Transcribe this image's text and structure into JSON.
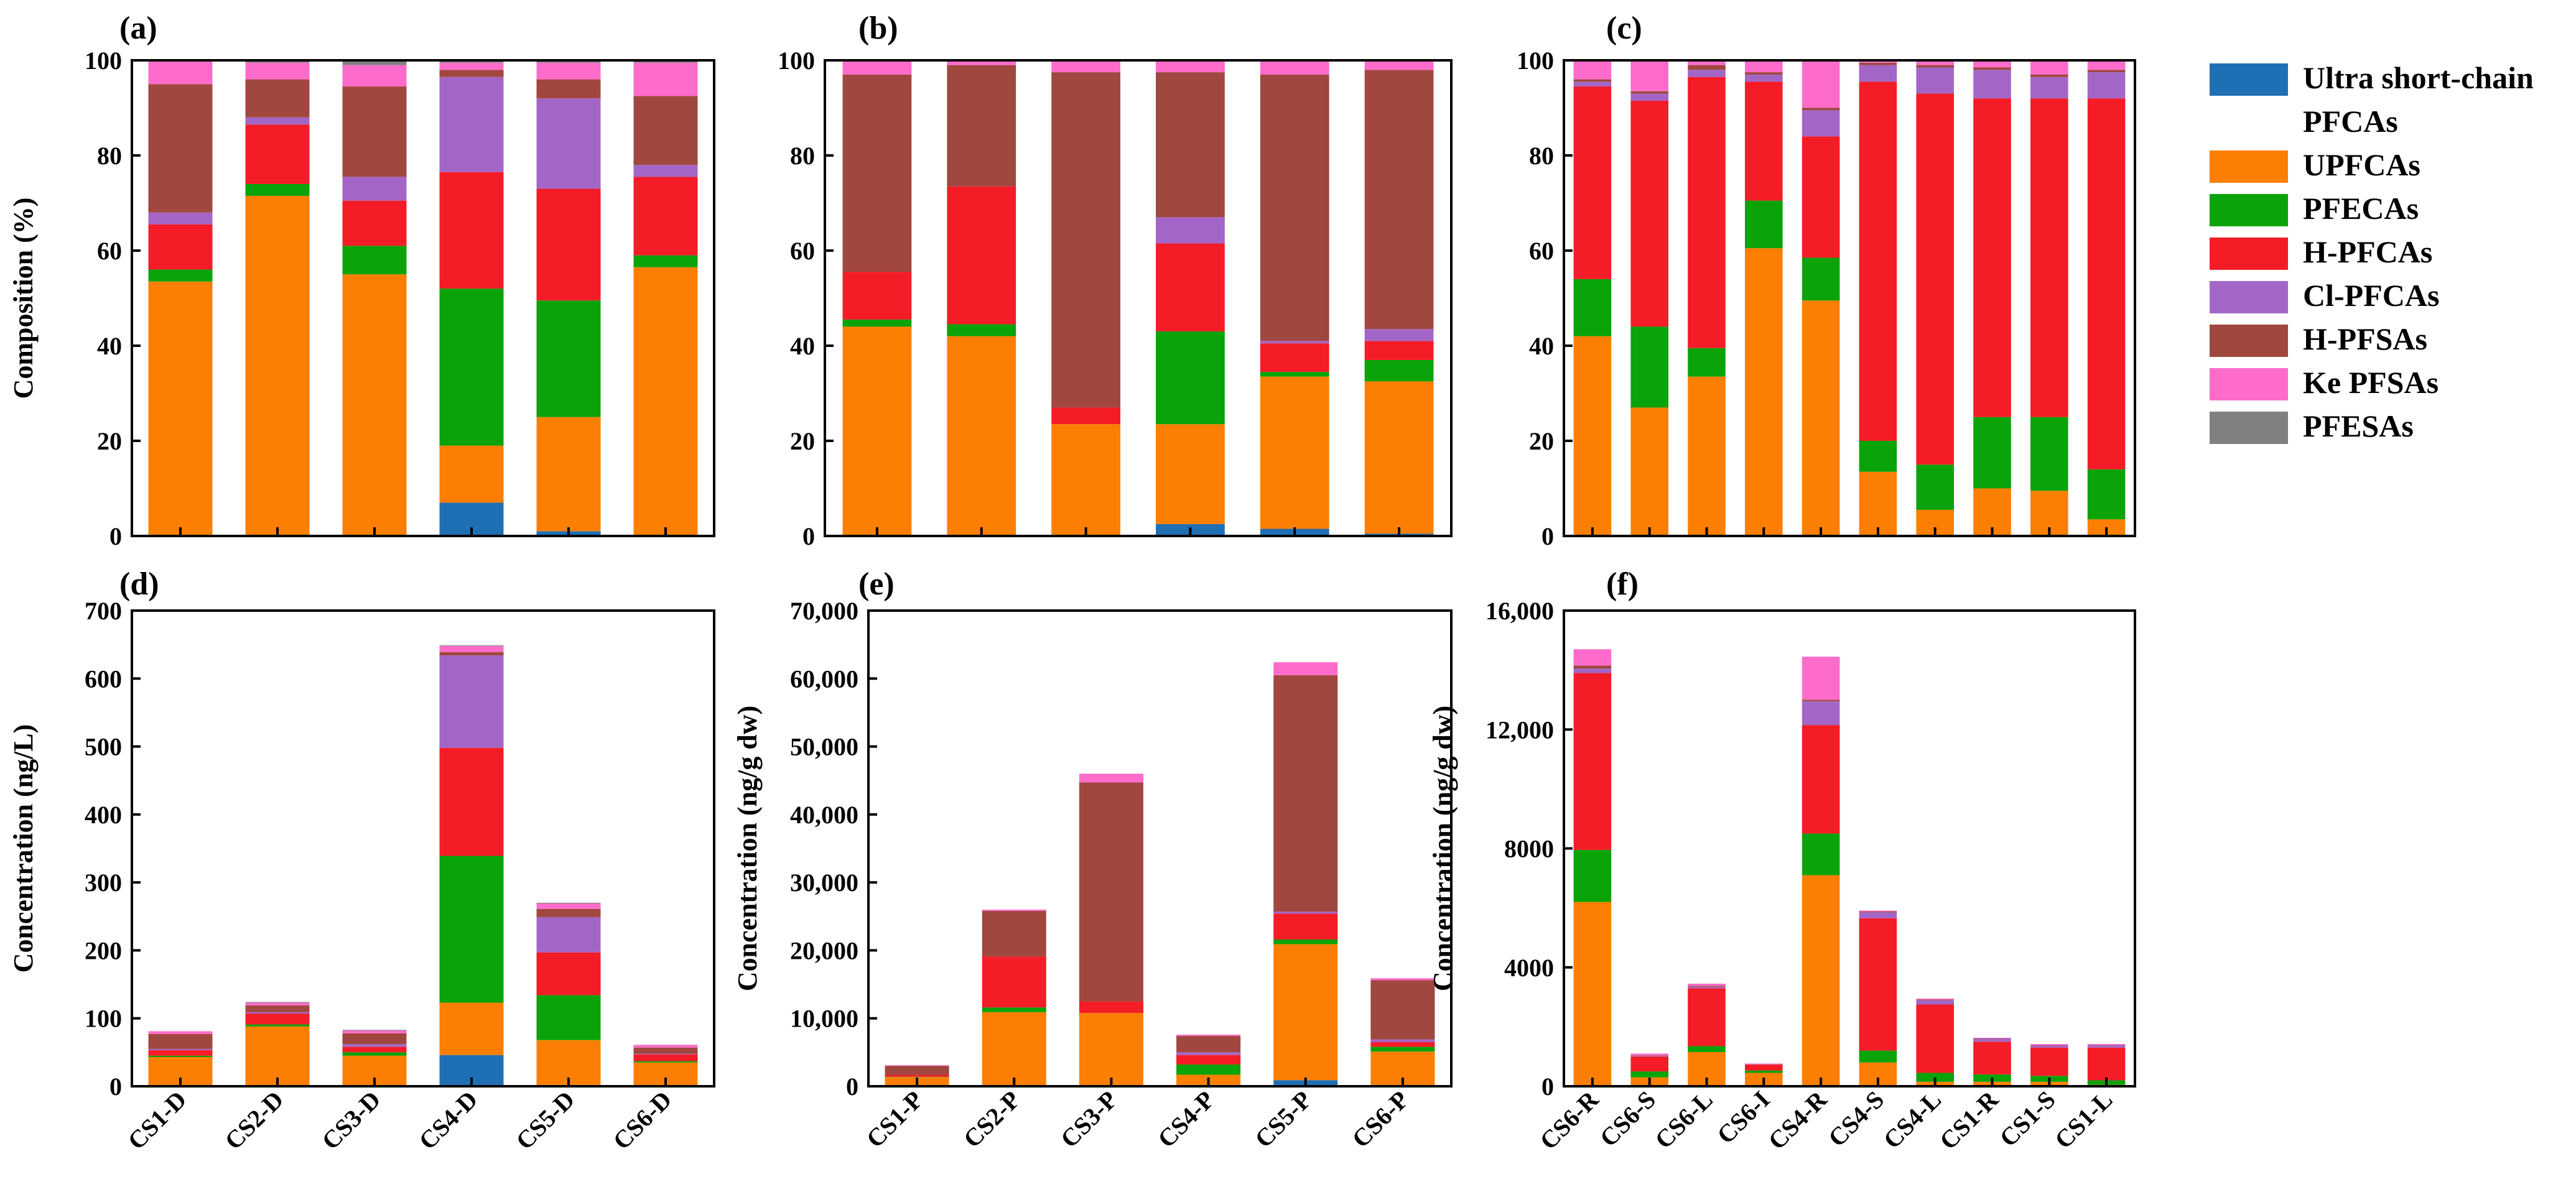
{
  "colors": {
    "Ultra short-chain PFCAs": "#1f6fb4",
    "UPFCAs": "#fc7f03",
    "PFECAs": "#0aa30a",
    "H-PFCAs": "#f41c26",
    "Cl-PFCAs": "#a366c6",
    "H-PFSAs": "#a0473f",
    "Ke PFSAs": "#fd6ccb",
    "PFESAs": "#808080"
  },
  "legend": {
    "entries": [
      {
        "name": "Ultra short-chain PFCAs",
        "lines": [
          "Ultra short-chain",
          "PFCAs"
        ]
      },
      {
        "name": "UPFCAs",
        "lines": [
          "UPFCAs"
        ]
      },
      {
        "name": "PFECAs",
        "lines": [
          "PFECAs"
        ]
      },
      {
        "name": "H-PFCAs",
        "lines": [
          "H-PFCAs"
        ]
      },
      {
        "name": "Cl-PFCAs",
        "lines": [
          "Cl-PFCAs"
        ]
      },
      {
        "name": "H-PFSAs",
        "lines": [
          "H-PFSAs"
        ]
      },
      {
        "name": "Ke PFSAs",
        "lines": [
          "Ke PFSAs"
        ]
      },
      {
        "name": "PFESAs",
        "lines": [
          "PFESAs"
        ]
      }
    ]
  },
  "chart_data": [
    {
      "panel": "(a)",
      "type": "bar",
      "stacked": true,
      "ylabel": "Composition (%)",
      "ylim": [
        0,
        100
      ],
      "yticks": [
        "0",
        "20",
        "40",
        "60",
        "80",
        "100"
      ],
      "show_categories": false,
      "categories": [
        "CS1-D",
        "CS2-D",
        "CS3-D",
        "CS4-D",
        "CS5-D",
        "CS6-D"
      ],
      "series": [
        {
          "name": "Ultra short-chain PFCAs",
          "values": [
            0,
            0,
            0,
            7,
            1,
            0
          ]
        },
        {
          "name": "UPFCAs",
          "values": [
            53.5,
            71.5,
            55,
            12,
            24,
            56.5
          ]
        },
        {
          "name": "PFECAs",
          "values": [
            2.5,
            2.5,
            6,
            33,
            24.5,
            2.5
          ]
        },
        {
          "name": "H-PFCAs",
          "values": [
            9.5,
            12.5,
            9.5,
            24.5,
            23.5,
            16.5
          ]
        },
        {
          "name": "Cl-PFCAs",
          "values": [
            2.5,
            1.5,
            5,
            20,
            19,
            2.5
          ]
        },
        {
          "name": "H-PFSAs",
          "values": [
            27,
            8,
            19,
            1.5,
            4,
            14.5
          ]
        },
        {
          "name": "Ke PFSAs",
          "values": [
            5,
            3.5,
            4.5,
            1.5,
            3.5,
            7
          ]
        },
        {
          "name": "PFESAs",
          "values": [
            0,
            0.5,
            1,
            0.5,
            0.5,
            0.5
          ]
        }
      ]
    },
    {
      "panel": "(b)",
      "type": "bar",
      "stacked": true,
      "ylabel": "",
      "ylim": [
        0,
        100
      ],
      "yticks": [
        "0",
        "20",
        "40",
        "60",
        "80",
        "100"
      ],
      "show_categories": false,
      "categories": [
        "CS1-P",
        "CS2-P",
        "CS3-P",
        "CS4-P",
        "CS5-P",
        "CS6-P"
      ],
      "series": [
        {
          "name": "Ultra short-chain PFCAs",
          "values": [
            0,
            0,
            0,
            2.5,
            1.5,
            0.5
          ]
        },
        {
          "name": "UPFCAs",
          "values": [
            44,
            42,
            23.5,
            21,
            32,
            32
          ]
        },
        {
          "name": "PFECAs",
          "values": [
            1.5,
            2.5,
            0,
            19.5,
            1,
            4.5
          ]
        },
        {
          "name": "H-PFCAs",
          "values": [
            10,
            29,
            3.5,
            18.5,
            6,
            4
          ]
        },
        {
          "name": "Cl-PFCAs",
          "values": [
            0,
            0,
            0,
            5.5,
            0.5,
            2.5
          ]
        },
        {
          "name": "H-PFSAs",
          "values": [
            41.5,
            25.5,
            70.5,
            30.5,
            56,
            54.5
          ]
        },
        {
          "name": "Ke PFSAs",
          "values": [
            3,
            1,
            2.5,
            2.5,
            3,
            2
          ]
        },
        {
          "name": "PFESAs",
          "values": [
            0,
            0,
            0,
            0,
            0,
            0
          ]
        }
      ]
    },
    {
      "panel": "(c)",
      "type": "bar",
      "stacked": true,
      "ylabel": "",
      "ylim": [
        0,
        100
      ],
      "yticks": [
        "0",
        "20",
        "40",
        "60",
        "80",
        "100"
      ],
      "show_categories": false,
      "categories": [
        "CS6-R",
        "CS6-S",
        "CS6-L",
        "CS6-I",
        "CS4-R",
        "CS4-S",
        "CS4-L",
        "CS1-R",
        "CS1-S",
        "CS1-L"
      ],
      "series": [
        {
          "name": "Ultra short-chain PFCAs",
          "values": [
            0,
            0,
            0,
            0,
            0,
            0,
            0,
            0,
            0,
            0
          ]
        },
        {
          "name": "UPFCAs",
          "values": [
            42,
            27,
            33.5,
            60.5,
            49.5,
            13.5,
            5.5,
            10,
            9.5,
            3.5
          ]
        },
        {
          "name": "PFECAs",
          "values": [
            12,
            17,
            6,
            10,
            9,
            6.5,
            9.5,
            15,
            15.5,
            10.5
          ]
        },
        {
          "name": "H-PFCAs",
          "values": [
            40.5,
            47.5,
            57,
            25,
            25.5,
            75.5,
            78,
            67,
            67,
            78
          ]
        },
        {
          "name": "Cl-PFCAs",
          "values": [
            1,
            1.5,
            1.5,
            1.5,
            5.5,
            3.5,
            5.5,
            6,
            4.5,
            5.5
          ]
        },
        {
          "name": "H-PFSAs",
          "values": [
            0.5,
            0.5,
            1,
            0.5,
            0.5,
            0.5,
            0.5,
            0.5,
            0.5,
            0.5
          ]
        },
        {
          "name": "Ke PFSAs",
          "values": [
            4,
            6.5,
            1,
            2.5,
            10,
            0.5,
            1,
            1.5,
            3,
            2
          ]
        },
        {
          "name": "PFESAs",
          "values": [
            0,
            0,
            0,
            0,
            0,
            0,
            0,
            0,
            0,
            0
          ]
        }
      ]
    },
    {
      "panel": "(d)",
      "type": "bar",
      "stacked": true,
      "ylabel": "Concentration (ng/L)",
      "ylim": [
        0,
        700
      ],
      "yticks": [
        "0",
        "100",
        "200",
        "300",
        "400",
        "500",
        "600",
        "700"
      ],
      "show_categories": true,
      "categories": [
        "CS1-D",
        "CS2-D",
        "CS3-D",
        "CS4-D",
        "CS5-D",
        "CS6-D"
      ],
      "series": [
        {
          "name": "Ultra short-chain PFCAs",
          "values": [
            0,
            0,
            0,
            46,
            2,
            0
          ]
        },
        {
          "name": "UPFCAs",
          "values": [
            43,
            88,
            45,
            77,
            66,
            35
          ]
        },
        {
          "name": "PFECAs",
          "values": [
            2,
            3,
            5,
            216,
            66,
            2
          ]
        },
        {
          "name": "H-PFCAs",
          "values": [
            8,
            16,
            8,
            159,
            63,
            10
          ]
        },
        {
          "name": "Cl-PFCAs",
          "values": [
            2,
            2,
            4,
            136,
            52,
            1
          ]
        },
        {
          "name": "H-PFSAs",
          "values": [
            22,
            10,
            16,
            5,
            12,
            9
          ]
        },
        {
          "name": "Ke PFSAs",
          "values": [
            4,
            4,
            4,
            9,
            8,
            4
          ]
        },
        {
          "name": "PFESAs",
          "values": [
            0,
            1,
            1,
            1,
            1,
            0
          ]
        }
      ]
    },
    {
      "panel": "(e)",
      "type": "bar",
      "stacked": true,
      "ylabel": "Concentration (ng/g dw)",
      "ylim": [
        0,
        70000
      ],
      "yticks": [
        "0",
        "10,000",
        "20,000",
        "30,000",
        "40,000",
        "50,000",
        "60,000",
        "70,000"
      ],
      "show_categories": true,
      "categories": [
        "CS1-P",
        "CS2-P",
        "CS3-P",
        "CS4-P",
        "CS5-P",
        "CS6-P"
      ],
      "series": [
        {
          "name": "Ultra short-chain PFCAs",
          "values": [
            0,
            0,
            0,
            200,
            900,
            100
          ]
        },
        {
          "name": "UPFCAs",
          "values": [
            1350,
            10900,
            10800,
            1500,
            20000,
            5000
          ]
        },
        {
          "name": "PFECAs",
          "values": [
            50,
            700,
            0,
            1500,
            700,
            700
          ]
        },
        {
          "name": "H-PFCAs",
          "values": [
            300,
            7500,
            1700,
            1400,
            3800,
            700
          ]
        },
        {
          "name": "Cl-PFCAs",
          "values": [
            0,
            0,
            0,
            400,
            300,
            400
          ]
        },
        {
          "name": "H-PFSAs",
          "values": [
            1300,
            6700,
            32200,
            2400,
            34800,
            8700
          ]
        },
        {
          "name": "Ke PFSAs",
          "values": [
            100,
            200,
            1300,
            200,
            1900,
            300
          ]
        },
        {
          "name": "PFESAs",
          "values": [
            0,
            0,
            0,
            0,
            0,
            0
          ]
        }
      ]
    },
    {
      "panel": "(f)",
      "type": "bar",
      "stacked": true,
      "ylabel": "Concentration (ng/g dw)",
      "ylim": [
        0,
        16000
      ],
      "yticks": [
        "0",
        "4000",
        "8000",
        "12,000",
        "16,000"
      ],
      "show_categories": true,
      "categories": [
        "CS6-R",
        "CS6-S",
        "CS6-L",
        "CS6-I",
        "CS4-R",
        "CS4-S",
        "CS4-L",
        "CS1-R",
        "CS1-S",
        "CS1-L"
      ],
      "series": [
        {
          "name": "Ultra short-chain PFCAs",
          "values": [
            0,
            0,
            0,
            0,
            0,
            0,
            0,
            0,
            0,
            0
          ]
        },
        {
          "name": "UPFCAs",
          "values": [
            6200,
            300,
            1150,
            450,
            7100,
            800,
            150,
            150,
            150,
            50
          ]
        },
        {
          "name": "PFECAs",
          "values": [
            1750,
            200,
            200,
            80,
            1400,
            400,
            300,
            250,
            200,
            150
          ]
        },
        {
          "name": "H-PFCAs",
          "values": [
            5950,
            500,
            1950,
            200,
            3650,
            4450,
            2300,
            1100,
            950,
            1100
          ]
        },
        {
          "name": "Cl-PFCAs",
          "values": [
            150,
            20,
            50,
            10,
            800,
            200,
            150,
            100,
            70,
            80
          ]
        },
        {
          "name": "H-PFSAs",
          "values": [
            100,
            20,
            30,
            5,
            50,
            30,
            20,
            10,
            10,
            10
          ]
        },
        {
          "name": "Ke PFSAs",
          "values": [
            550,
            60,
            70,
            20,
            1450,
            30,
            30,
            20,
            40,
            30
          ]
        },
        {
          "name": "PFESAs",
          "values": [
            0,
            0,
            0,
            0,
            0,
            0,
            0,
            0,
            0,
            0
          ]
        }
      ]
    }
  ]
}
